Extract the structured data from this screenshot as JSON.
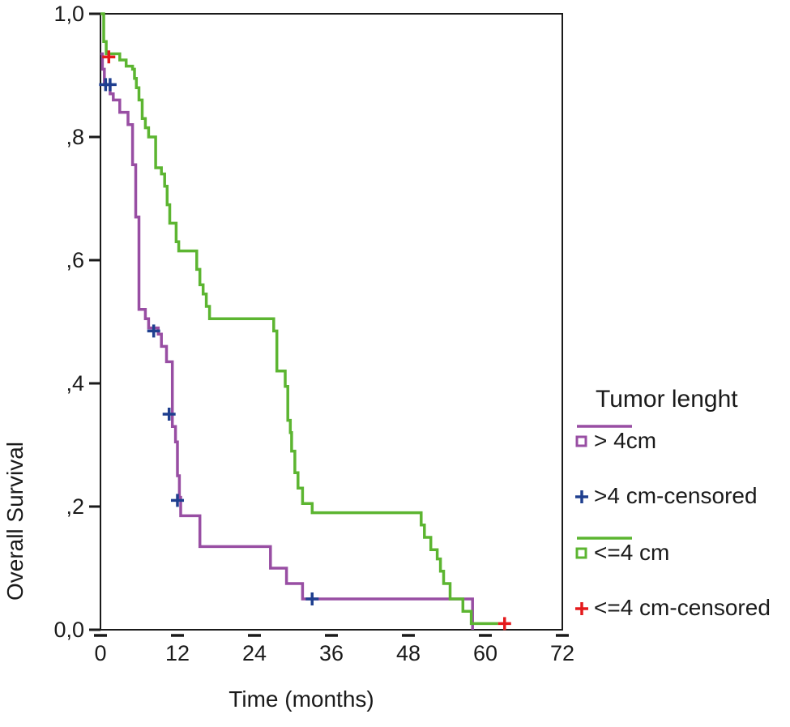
{
  "chart_data": {
    "type": "line",
    "subtype": "kaplan-meier",
    "xlabel": "Time (months)",
    "ylabel": "Overall Survival",
    "xlim": [
      0,
      72
    ],
    "ylim": [
      0,
      1
    ],
    "xticks": [
      0,
      12,
      24,
      36,
      48,
      60,
      72
    ],
    "xtick_labels": [
      "0",
      "12",
      "24",
      "36",
      "48",
      "60",
      "72"
    ],
    "yticks": [
      0,
      0.2,
      0.4,
      0.6,
      0.8,
      1.0
    ],
    "ytick_labels": [
      "0,0",
      ",2",
      ",4",
      ",6",
      ",8",
      "1,0"
    ],
    "grid": false,
    "legend": {
      "title": "Tumor lenght",
      "placement": "right",
      "entries": [
        {
          "label": "> 4cm",
          "kind": "line",
          "color": "#984ea3"
        },
        {
          "label": ">4 cm-censored",
          "kind": "censor",
          "color": "#1f3f8f"
        },
        {
          "label": "<=4 cm",
          "kind": "line",
          "color": "#5cb531"
        },
        {
          "label": "<=4 cm-censored",
          "kind": "censor",
          "color": "#e41a1c"
        }
      ]
    },
    "series": [
      {
        "name": "> 4cm",
        "color": "#984ea3",
        "steps": [
          [
            0,
            0.935
          ],
          [
            0.3,
            0.91
          ],
          [
            0.6,
            0.885
          ],
          [
            1.5,
            0.87
          ],
          [
            2.0,
            0.86
          ],
          [
            3.0,
            0.84
          ],
          [
            4.3,
            0.82
          ],
          [
            5.0,
            0.755
          ],
          [
            5.5,
            0.67
          ],
          [
            6.0,
            0.52
          ],
          [
            7.0,
            0.505
          ],
          [
            7.5,
            0.49
          ],
          [
            9.0,
            0.48
          ],
          [
            9.5,
            0.46
          ],
          [
            10.3,
            0.435
          ],
          [
            11.2,
            0.33
          ],
          [
            11.7,
            0.305
          ],
          [
            12.0,
            0.25
          ],
          [
            12.3,
            0.215
          ],
          [
            12.5,
            0.185
          ],
          [
            15.5,
            0.135
          ],
          [
            26.5,
            0.1
          ],
          [
            29.0,
            0.075
          ],
          [
            31.5,
            0.05
          ],
          [
            58.0,
            0.0
          ]
        ],
        "end_x": 58.0
      },
      {
        "name": "<=4 cm",
        "color": "#5cb531",
        "steps": [
          [
            0,
            1.0
          ],
          [
            0.5,
            0.955
          ],
          [
            0.9,
            0.935
          ],
          [
            3.0,
            0.925
          ],
          [
            4.0,
            0.915
          ],
          [
            5.0,
            0.91
          ],
          [
            5.3,
            0.895
          ],
          [
            5.6,
            0.88
          ],
          [
            6.0,
            0.86
          ],
          [
            6.5,
            0.83
          ],
          [
            7.0,
            0.815
          ],
          [
            7.5,
            0.8
          ],
          [
            8.6,
            0.75
          ],
          [
            9.5,
            0.74
          ],
          [
            10.0,
            0.72
          ],
          [
            10.4,
            0.69
          ],
          [
            10.8,
            0.66
          ],
          [
            11.8,
            0.63
          ],
          [
            12.2,
            0.615
          ],
          [
            15.0,
            0.585
          ],
          [
            15.5,
            0.56
          ],
          [
            16.0,
            0.545
          ],
          [
            16.5,
            0.525
          ],
          [
            17.0,
            0.505
          ],
          [
            27.0,
            0.485
          ],
          [
            27.5,
            0.42
          ],
          [
            28.8,
            0.395
          ],
          [
            29.2,
            0.34
          ],
          [
            29.6,
            0.32
          ],
          [
            29.8,
            0.29
          ],
          [
            30.3,
            0.255
          ],
          [
            30.8,
            0.23
          ],
          [
            31.5,
            0.205
          ],
          [
            33.0,
            0.19
          ],
          [
            50.0,
            0.17
          ],
          [
            50.5,
            0.15
          ],
          [
            51.5,
            0.13
          ],
          [
            52.5,
            0.115
          ],
          [
            53.0,
            0.095
          ],
          [
            53.5,
            0.075
          ],
          [
            54.5,
            0.05
          ],
          [
            56.5,
            0.03
          ],
          [
            57.8,
            0.01
          ]
        ],
        "end_x": 62.0
      }
    ],
    "censored": [
      {
        "series": ">4 cm-censored",
        "color": "#1f3f8f",
        "points": [
          [
            0.8,
            0.885
          ],
          [
            1.5,
            0.885
          ],
          [
            8.3,
            0.485
          ],
          [
            10.7,
            0.35
          ],
          [
            12.0,
            0.21
          ],
          [
            33.0,
            0.05
          ]
        ]
      },
      {
        "series": "<=4 cm-censored",
        "color": "#e41a1c",
        "points": [
          [
            1.3,
            0.93
          ],
          [
            63.0,
            0.01
          ]
        ]
      }
    ]
  }
}
